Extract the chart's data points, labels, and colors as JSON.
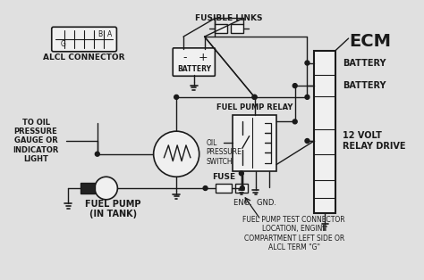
{
  "bg_color": "#e0e0e0",
  "line_color": "#1a1a1a",
  "labels": {
    "alcl": "ALCL CONNECTOR",
    "fusible": "FUSIBLE LINKS",
    "ecm": "ECM",
    "battery_lbl": "BATTERY",
    "battery_lbl2": "BATTERY",
    "relay_label": "12 VOLT\nRELAY DRIVE",
    "fuel_pump_relay": "FUEL PUMP RELAY",
    "oil_pressure": "OIL\nPRESSURE\nSWITCH",
    "to_oil": "TO OIL\nPRESSURE\nGAUGE OR\nINDICATOR\nLIGHT",
    "fuse": "FUSE",
    "fuel_pump": "FUEL PUMP\n(IN TANK)",
    "eng_gnd": "ENG.  GND.",
    "test_connector": "FUEL PUMP TEST CONNECTOR\nLOCATION, ENGINE\nCOMPARTMENT LEFT SIDE OR\nALCL TERM \"G\""
  }
}
